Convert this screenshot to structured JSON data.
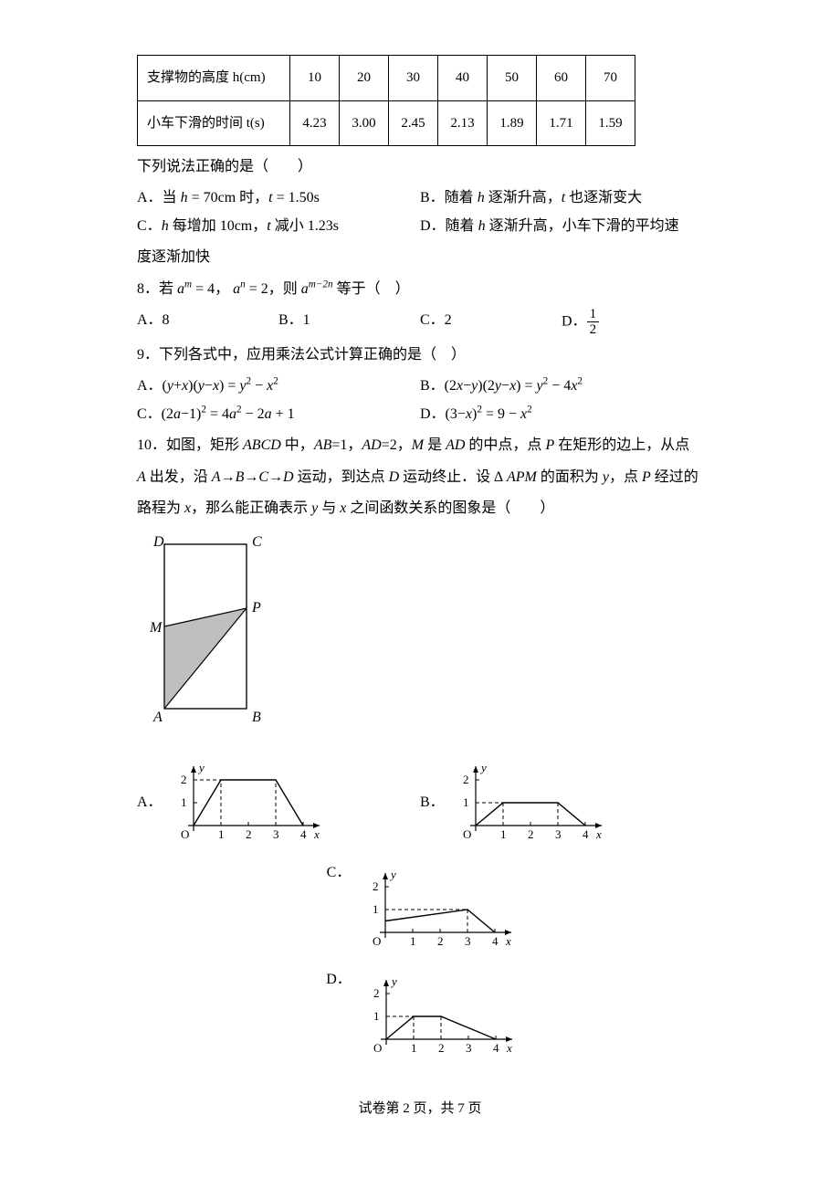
{
  "table": {
    "row1_header": "支撑物的高度 h(cm)",
    "row1": [
      "10",
      "20",
      "30",
      "40",
      "50",
      "60",
      "70"
    ],
    "row2_header": "小车下滑的时间 t(s)",
    "row2": [
      "4.23",
      "3.00",
      "2.45",
      "2.13",
      "1.89",
      "1.71",
      "1.59"
    ],
    "border_color": "#000000",
    "cell_fontsize": 15
  },
  "q7": {
    "stem": "下列说法正确的是（　　）",
    "A": "A．当 h = 70cm 时，t = 1.50s",
    "B": "B．随着 h 逐渐升高，t 也逐渐变大",
    "C": "C．h 每增加 10cm，t 减小 1.23s",
    "D": "D．随着 h 逐渐升高，小车下滑的平均速",
    "D_cont": "度逐渐加快"
  },
  "q8": {
    "stem_pre": "8．若 ",
    "stem_mid1": " = 4，",
    "stem_mid2": " = 2，则 ",
    "stem_post": " 等于（　）",
    "A": "A．8",
    "B": "B．1",
    "C": "C．2",
    "D_pre": "D．"
  },
  "q9": {
    "stem": "9．下列各式中，应用乘法公式计算正确的是（　）",
    "A": "A．(y + x)(y − x) = y² − x²",
    "B": "B．(2x − y)(2y − x) = y² − 4x²",
    "C": "C．(2a − 1)² = 4a² − 2a + 1",
    "D": "D．(3 − x)² = 9 − x²"
  },
  "q10": {
    "l1": "10．如图，矩形 ABCD 中，AB=1，AD=2，M 是 AD 的中点，点 P 在矩形的边上，从点",
    "l2": "A 出发，沿 A→B→C→D 运动，到达点 D 运动终止．设 ∆ APM 的面积为 y，点 P 经过的",
    "l3": "路程为 x，那么能正确表示 y 与 x 之间函数关系的图象是（　　）",
    "rect": {
      "labels": {
        "A": "A",
        "B": "B",
        "C": "C",
        "D": "D",
        "M": "M",
        "P": "P"
      },
      "fill": "#bfbfbf",
      "stroke": "#000000"
    },
    "opts": {
      "A": "A．",
      "B": "B．",
      "C": "C．",
      "D": "D．"
    },
    "graphs": {
      "axis_color": "#000000",
      "dash_color": "#000000",
      "x_ticks": [
        1,
        2,
        3,
        4
      ],
      "y_ticks": [
        1,
        2
      ],
      "x_label": "x",
      "y_label": "y",
      "origin": "O",
      "A": {
        "pts": [
          [
            0,
            0
          ],
          [
            1,
            2
          ],
          [
            3,
            2
          ],
          [
            4,
            0
          ]
        ],
        "dash_y": 2,
        "dash_x": [
          1,
          3
        ]
      },
      "B": {
        "pts": [
          [
            0,
            0
          ],
          [
            1,
            1
          ],
          [
            3,
            1
          ],
          [
            4,
            0
          ]
        ],
        "dash_y": 1,
        "dash_x": [
          1,
          3
        ]
      },
      "C": {
        "pts": [
          [
            0,
            0.5
          ],
          [
            3,
            1
          ],
          [
            4,
            0
          ]
        ],
        "dash_y": 1,
        "dash_x": [
          3
        ]
      },
      "D": {
        "pts": [
          [
            0,
            0
          ],
          [
            1,
            1
          ],
          [
            2,
            1
          ],
          [
            4,
            0
          ]
        ],
        "dash_y": 1,
        "dash_x": [
          1,
          2
        ]
      }
    }
  },
  "footer": "试卷第 2 页，共 7 页"
}
